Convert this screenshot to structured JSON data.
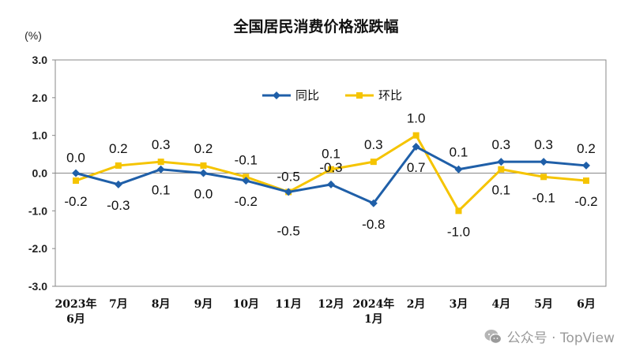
{
  "chart_data": {
    "type": "line",
    "title": "全国居民消费价格涨跌幅",
    "unit": "(%)",
    "yticks": [
      "3.0",
      "2.0",
      "1.0",
      "0.0",
      "-1.0",
      "-2.0",
      "-3.0"
    ],
    "ylim": [
      -3,
      3
    ],
    "categories": [
      [
        "2023年",
        "6月"
      ],
      [
        "7月"
      ],
      [
        "8月"
      ],
      [
        "9月"
      ],
      [
        "10月"
      ],
      [
        "11月"
      ],
      [
        "12月"
      ],
      [
        "2024年",
        "1月"
      ],
      [
        "2月"
      ],
      [
        "3月"
      ],
      [
        "4月"
      ],
      [
        "5月"
      ],
      [
        "6月"
      ]
    ],
    "legend_position": "top-center",
    "grid": false,
    "series": [
      {
        "name": "同比",
        "color": "#1f5fa8",
        "marker": "diamond",
        "values": [
          0.0,
          -0.3,
          0.1,
          0.0,
          -0.2,
          -0.5,
          -0.3,
          -0.8,
          0.7,
          0.1,
          0.3,
          0.3,
          0.2
        ],
        "labels": [
          "0.0",
          "-0.3",
          "0.1",
          "0.0",
          "-0.2",
          "-0.5",
          "-0.3",
          "-0.8",
          "0.7",
          "0.1",
          "0.3",
          "0.3",
          "0.2"
        ]
      },
      {
        "name": "环比",
        "color": "#f5c400",
        "marker": "square",
        "values": [
          -0.2,
          0.2,
          0.3,
          0.2,
          -0.1,
          -0.5,
          0.1,
          0.3,
          1.0,
          -1.0,
          0.1,
          -0.1,
          -0.2
        ],
        "labels": [
          "-0.2",
          "0.2",
          "0.3",
          "0.2",
          "-0.1",
          "-0.5",
          "0.1",
          "0.3",
          "1.0",
          "-1.0",
          "0.1",
          "-0.1",
          "-0.2"
        ]
      }
    ]
  },
  "watermark": {
    "text": "公众号 · TopView",
    "icon": "wechat-icon"
  }
}
